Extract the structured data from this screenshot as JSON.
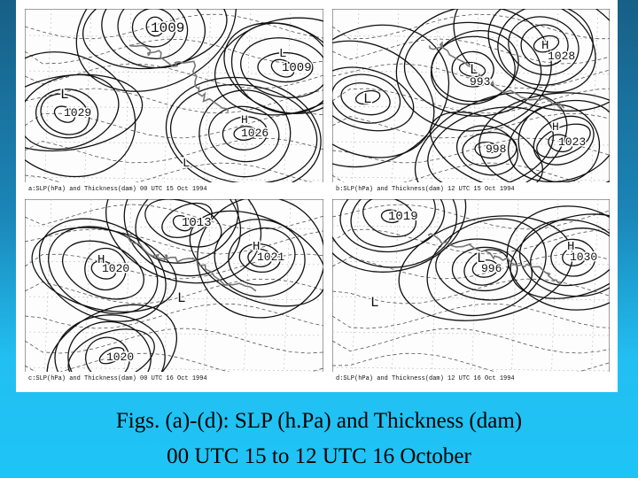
{
  "panels": [
    {
      "labels": [
        "1009",
        "L",
        "1009",
        "L",
        "1029",
        "H",
        "1026",
        "L"
      ],
      "footer": "a:SLP(hPa) and Thickness(dam) 00 UTC 15 Oct 1994"
    },
    {
      "labels": [
        "H",
        "1028",
        "L",
        "993",
        "L",
        "H",
        "1023",
        "L",
        "998"
      ],
      "footer": "b:SLP(hPa) and Thickness(dam) 12 UTC 15 Oct 1994"
    },
    {
      "labels": [
        "1013",
        "H",
        "1021",
        "H",
        "1020",
        "L",
        "1020"
      ],
      "footer": "c:SLP(hPa) and Thickness(dam) 00 UTC 16 Oct 1994"
    },
    {
      "labels": [
        "1019",
        "H",
        "1030",
        "L",
        "996",
        "L"
      ],
      "footer": "d:SLP(hPa) and Thickness(dam) 12 UTC 16 Oct 1994"
    }
  ],
  "caption": {
    "line1": "Figs. (a)-(d): SLP (h.Pa) and Thickness (dam)",
    "line2": "00 UTC 15 to 12 UTC 16 October"
  }
}
